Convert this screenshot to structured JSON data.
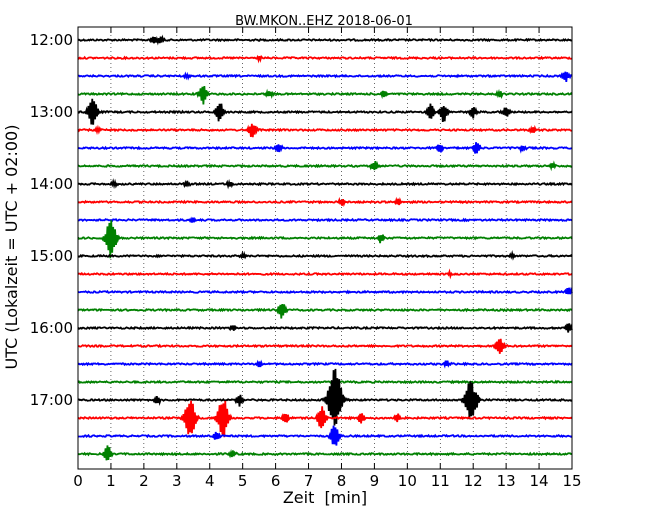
{
  "chart_data": {
    "type": "line",
    "title": "BW.MKON..EHZ 2018-06-01",
    "xlabel": "Zeit  [min]",
    "ylabel": "UTC (Lokalzeit = UTC + 02:00)",
    "xlim": [
      0,
      15
    ],
    "x_ticks": [
      "0",
      "1",
      "2",
      "3",
      "4",
      "5",
      "6",
      "7",
      "8",
      "9",
      "10",
      "11",
      "12",
      "13",
      "14",
      "15"
    ],
    "y_tick_labels": [
      "12:00",
      "13:00",
      "14:00",
      "15:00",
      "16:00",
      "17:00"
    ],
    "grid": true,
    "trace_colors": [
      "#000000",
      "#ff0000",
      "#0000ff",
      "#008000"
    ],
    "traces": [
      {
        "start": "12:00",
        "events": [
          [
            2.3,
            0.4
          ],
          [
            2.5,
            0.3
          ]
        ]
      },
      {
        "start": "12:15",
        "events": [
          [
            5.5,
            0.2
          ]
        ]
      },
      {
        "start": "12:30",
        "events": [
          [
            3.3,
            0.2
          ],
          [
            14.8,
            0.5
          ]
        ]
      },
      {
        "start": "12:45",
        "events": [
          [
            3.8,
            0.9
          ],
          [
            5.8,
            0.3
          ],
          [
            9.3,
            0.3
          ],
          [
            12.8,
            0.3
          ]
        ]
      },
      {
        "start": "13:00",
        "events": [
          [
            0.4,
            0.9
          ],
          [
            0.5,
            0.7
          ],
          [
            4.3,
            0.9
          ],
          [
            10.7,
            0.7
          ],
          [
            11.1,
            0.9
          ],
          [
            12.0,
            0.5
          ],
          [
            13.0,
            0.5
          ]
        ]
      },
      {
        "start": "13:15",
        "events": [
          [
            0.6,
            0.2
          ],
          [
            5.3,
            0.7
          ],
          [
            13.8,
            0.3
          ]
        ]
      },
      {
        "start": "13:30",
        "events": [
          [
            6.1,
            0.4
          ],
          [
            11.0,
            0.4
          ],
          [
            12.1,
            0.6
          ],
          [
            13.5,
            0.3
          ]
        ]
      },
      {
        "start": "13:45",
        "events": [
          [
            9.0,
            0.5
          ],
          [
            14.4,
            0.2
          ]
        ]
      },
      {
        "start": "14:00",
        "events": [
          [
            1.1,
            0.3
          ],
          [
            3.3,
            0.3
          ],
          [
            4.6,
            0.3
          ]
        ]
      },
      {
        "start": "14:15",
        "events": [
          [
            8.0,
            0.3
          ],
          [
            9.7,
            0.3
          ]
        ]
      },
      {
        "start": "14:30",
        "events": [
          [
            3.5,
            0.2
          ]
        ]
      },
      {
        "start": "14:45",
        "events": [
          [
            1.0,
            1.8
          ],
          [
            9.2,
            0.4
          ]
        ]
      },
      {
        "start": "15:00",
        "events": [
          [
            5.0,
            0.2
          ],
          [
            13.2,
            0.2
          ]
        ]
      },
      {
        "start": "15:15",
        "events": [
          [
            11.3,
            0.2
          ]
        ]
      },
      {
        "start": "15:30",
        "events": [
          [
            14.9,
            0.4
          ]
        ]
      },
      {
        "start": "15:45",
        "events": [
          [
            6.2,
            0.8
          ]
        ]
      },
      {
        "start": "16:00",
        "events": [
          [
            4.7,
            0.3
          ],
          [
            14.9,
            0.4
          ]
        ]
      },
      {
        "start": "16:15",
        "events": [
          [
            12.8,
            0.8
          ]
        ]
      },
      {
        "start": "16:30",
        "events": [
          [
            5.5,
            0.3
          ],
          [
            11.2,
            0.3
          ]
        ]
      },
      {
        "start": "16:45",
        "events": []
      },
      {
        "start": "17:00",
        "events": [
          [
            2.4,
            0.4
          ],
          [
            4.9,
            0.6
          ],
          [
            7.8,
            2.8
          ],
          [
            11.9,
            1.8
          ],
          [
            12.1,
            0.5
          ]
        ]
      },
      {
        "start": "17:15",
        "events": [
          [
            3.4,
            1.9
          ],
          [
            4.4,
            1.8
          ],
          [
            6.3,
            0.5
          ],
          [
            7.4,
            1.1
          ],
          [
            8.6,
            0.5
          ],
          [
            9.7,
            0.4
          ]
        ]
      },
      {
        "start": "17:30",
        "events": [
          [
            4.2,
            0.4
          ],
          [
            7.8,
            1.1
          ]
        ]
      },
      {
        "start": "17:45",
        "events": [
          [
            0.9,
            0.8
          ],
          [
            4.7,
            0.3
          ]
        ]
      }
    ]
  }
}
